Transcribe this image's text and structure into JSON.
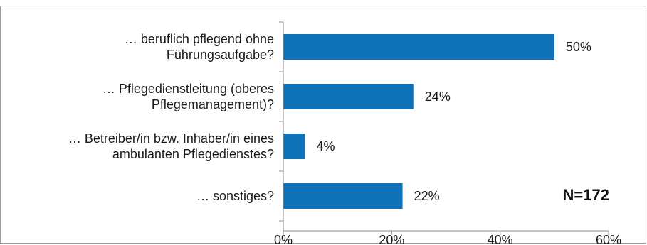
{
  "chart_data": {
    "type": "bar",
    "orientation": "horizontal",
    "categories": [
      [
        "… beruflich pflegend ohne",
        "Führungsaufgabe?"
      ],
      [
        "… Pflegedienstleitung (oberes",
        "Pflegemanagement)?"
      ],
      [
        "… Betreiber/in bzw. Inhaber/in eines",
        "ambulanten Pflegedienstes?"
      ],
      [
        "… sonstiges?"
      ]
    ],
    "values": [
      50,
      24,
      4,
      22
    ],
    "value_labels": [
      "50%",
      "24%",
      "4%",
      "22%"
    ],
    "xlim": [
      0,
      60
    ],
    "x_ticks": [
      0,
      20,
      40,
      60
    ],
    "x_tick_labels": [
      "0%",
      "20%",
      "40%",
      "60%"
    ],
    "annotation": "N=172",
    "bar_color": "#1072b8",
    "grid": false,
    "legend": "none"
  }
}
